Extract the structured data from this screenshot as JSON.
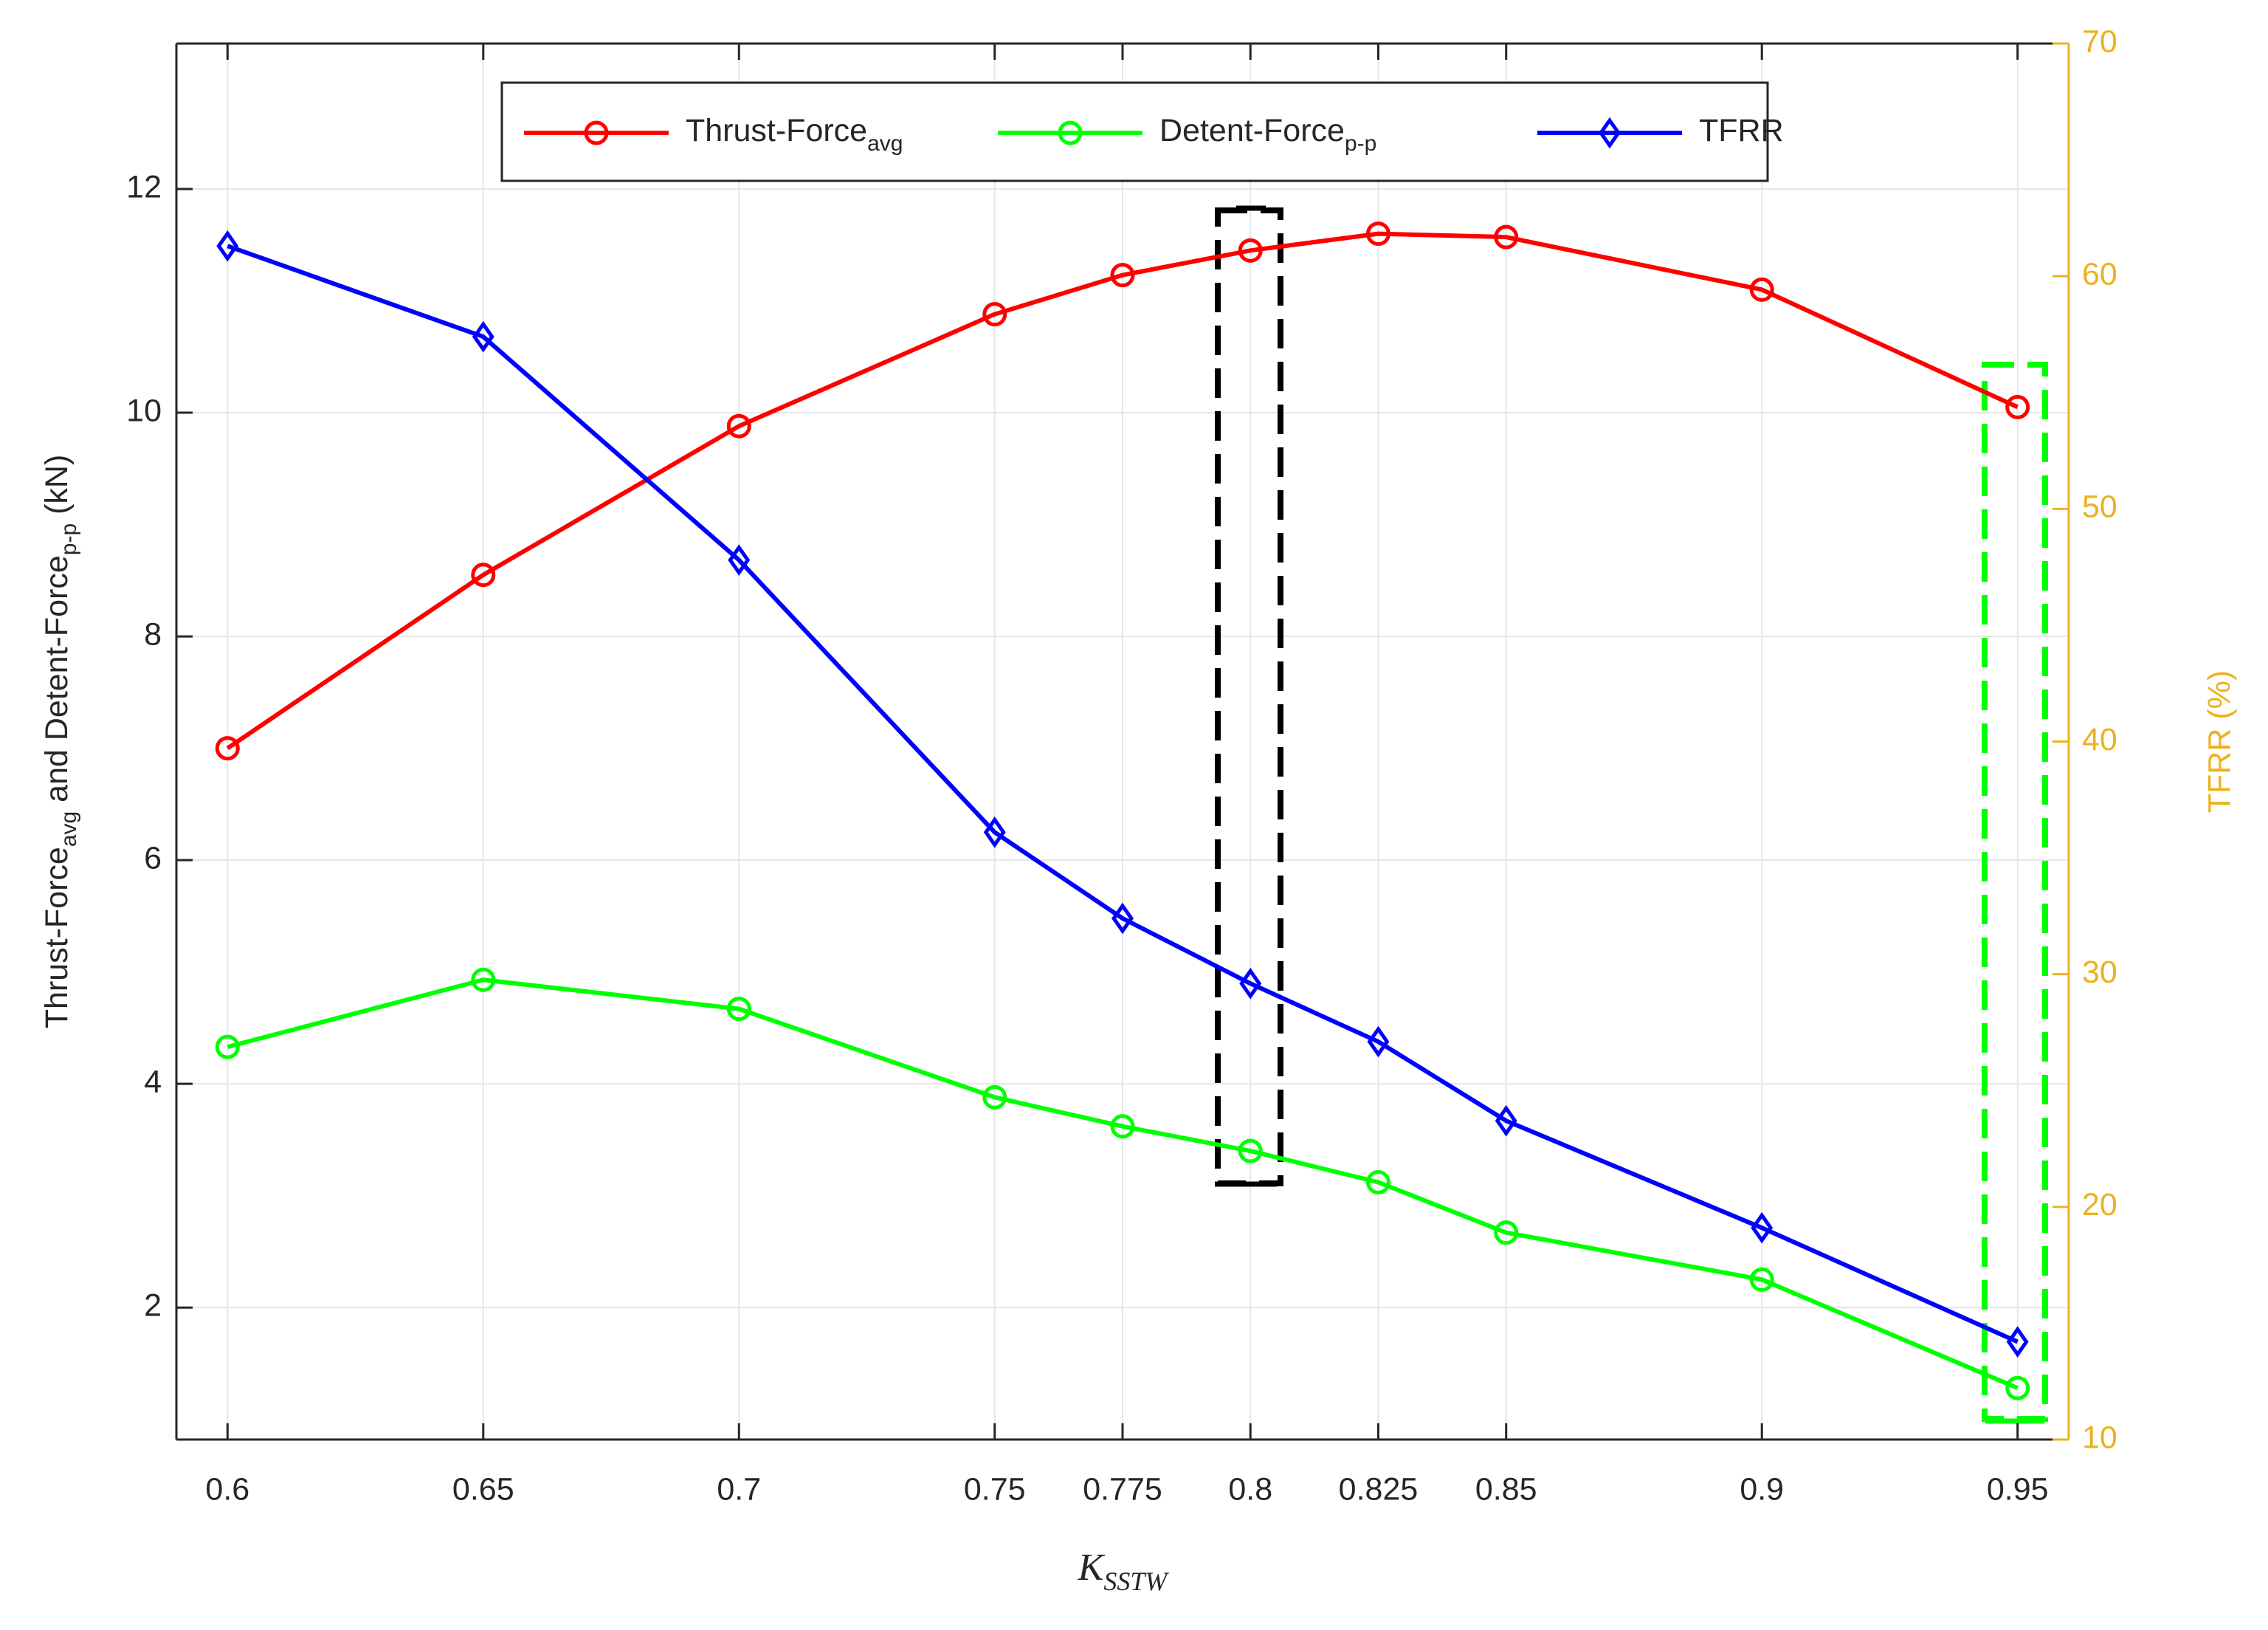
{
  "chart_data": {
    "type": "line",
    "x": [
      0.6,
      0.65,
      0.7,
      0.75,
      0.775,
      0.8,
      0.825,
      0.85,
      0.9,
      0.95
    ],
    "series": [
      {
        "name": "Thrust-Force",
        "name_subscript": "avg",
        "color": "#ff0000",
        "marker": "circle",
        "values": [
          7.0,
          8.55,
          9.88,
          10.88,
          11.23,
          11.45,
          11.6,
          11.57,
          11.1,
          10.05
        ]
      },
      {
        "name": "Detent-Force",
        "name_subscript": "p-p",
        "color": "#00ff00",
        "marker": "circle",
        "values": [
          4.33,
          4.93,
          4.67,
          3.88,
          3.62,
          3.4,
          3.12,
          2.67,
          2.25,
          1.28
        ]
      },
      {
        "name": "TFRR",
        "color": "#0000ff",
        "marker": "diamond",
        "axis": "y2",
        "values": [
          61.3,
          57.4,
          47.8,
          36.1,
          32.4,
          29.6,
          27.1,
          23.7,
          19.1,
          14.2
        ]
      }
    ],
    "xlim": [
      0.59,
      0.96
    ],
    "xticks": [
      0.6,
      0.65,
      0.7,
      0.75,
      0.775,
      0.8,
      0.825,
      0.85,
      0.9,
      0.95
    ],
    "ylim": [
      0.82,
      13.3
    ],
    "yticks": [
      2,
      4,
      6,
      8,
      10,
      12
    ],
    "y2lim": [
      10,
      70
    ],
    "y2ticks": [
      10,
      20,
      30,
      40,
      50,
      60,
      70
    ],
    "y2_color": "#edb120",
    "x_label": [
      {
        "text": "K"
      },
      {
        "text": "SSTW",
        "sub": true
      }
    ],
    "y_label": [
      {
        "text": "Thrust-Force"
      },
      {
        "text": "avg",
        "sub": true
      },
      {
        "text": " and Detent-Force"
      },
      {
        "text": "p-p",
        "sub": true
      },
      {
        "text": " (kN)"
      }
    ],
    "y2_label": "TFRR (%)",
    "grid": true,
    "legend": "top"
  }
}
